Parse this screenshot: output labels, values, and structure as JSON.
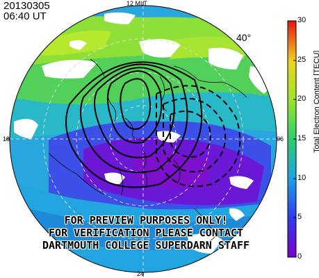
{
  "header": {
    "date": "20130305",
    "time": "06:40 UT"
  },
  "mlt_labels": {
    "noon": "12 MLT",
    "dusk": "18",
    "dawn": "06",
    "midnight": "24"
  },
  "latitude_label": "40°",
  "watermark": {
    "line1": "FOR PREVIEW PURPOSES ONLY!",
    "line2": "FOR VERIFICATION PLEASE CONTACT",
    "line3": "DARTMOUTH COLLEGE SUPERDARN STAFF"
  },
  "colorbar": {
    "title": "Total Electron Content [TECU]",
    "ticks": [
      "0",
      "5",
      "10",
      "15",
      "20",
      "25",
      "30"
    ],
    "range": [
      0,
      30
    ]
  },
  "colors": {
    "tec_0": "#7a00c8",
    "tec_5": "#2f3cf0",
    "tec_10": "#1ea0e6",
    "tec_15": "#2ecd6e",
    "tec_20": "#9ce62a",
    "tec_25": "#f0d21e",
    "tec_30": "#e61414"
  }
}
